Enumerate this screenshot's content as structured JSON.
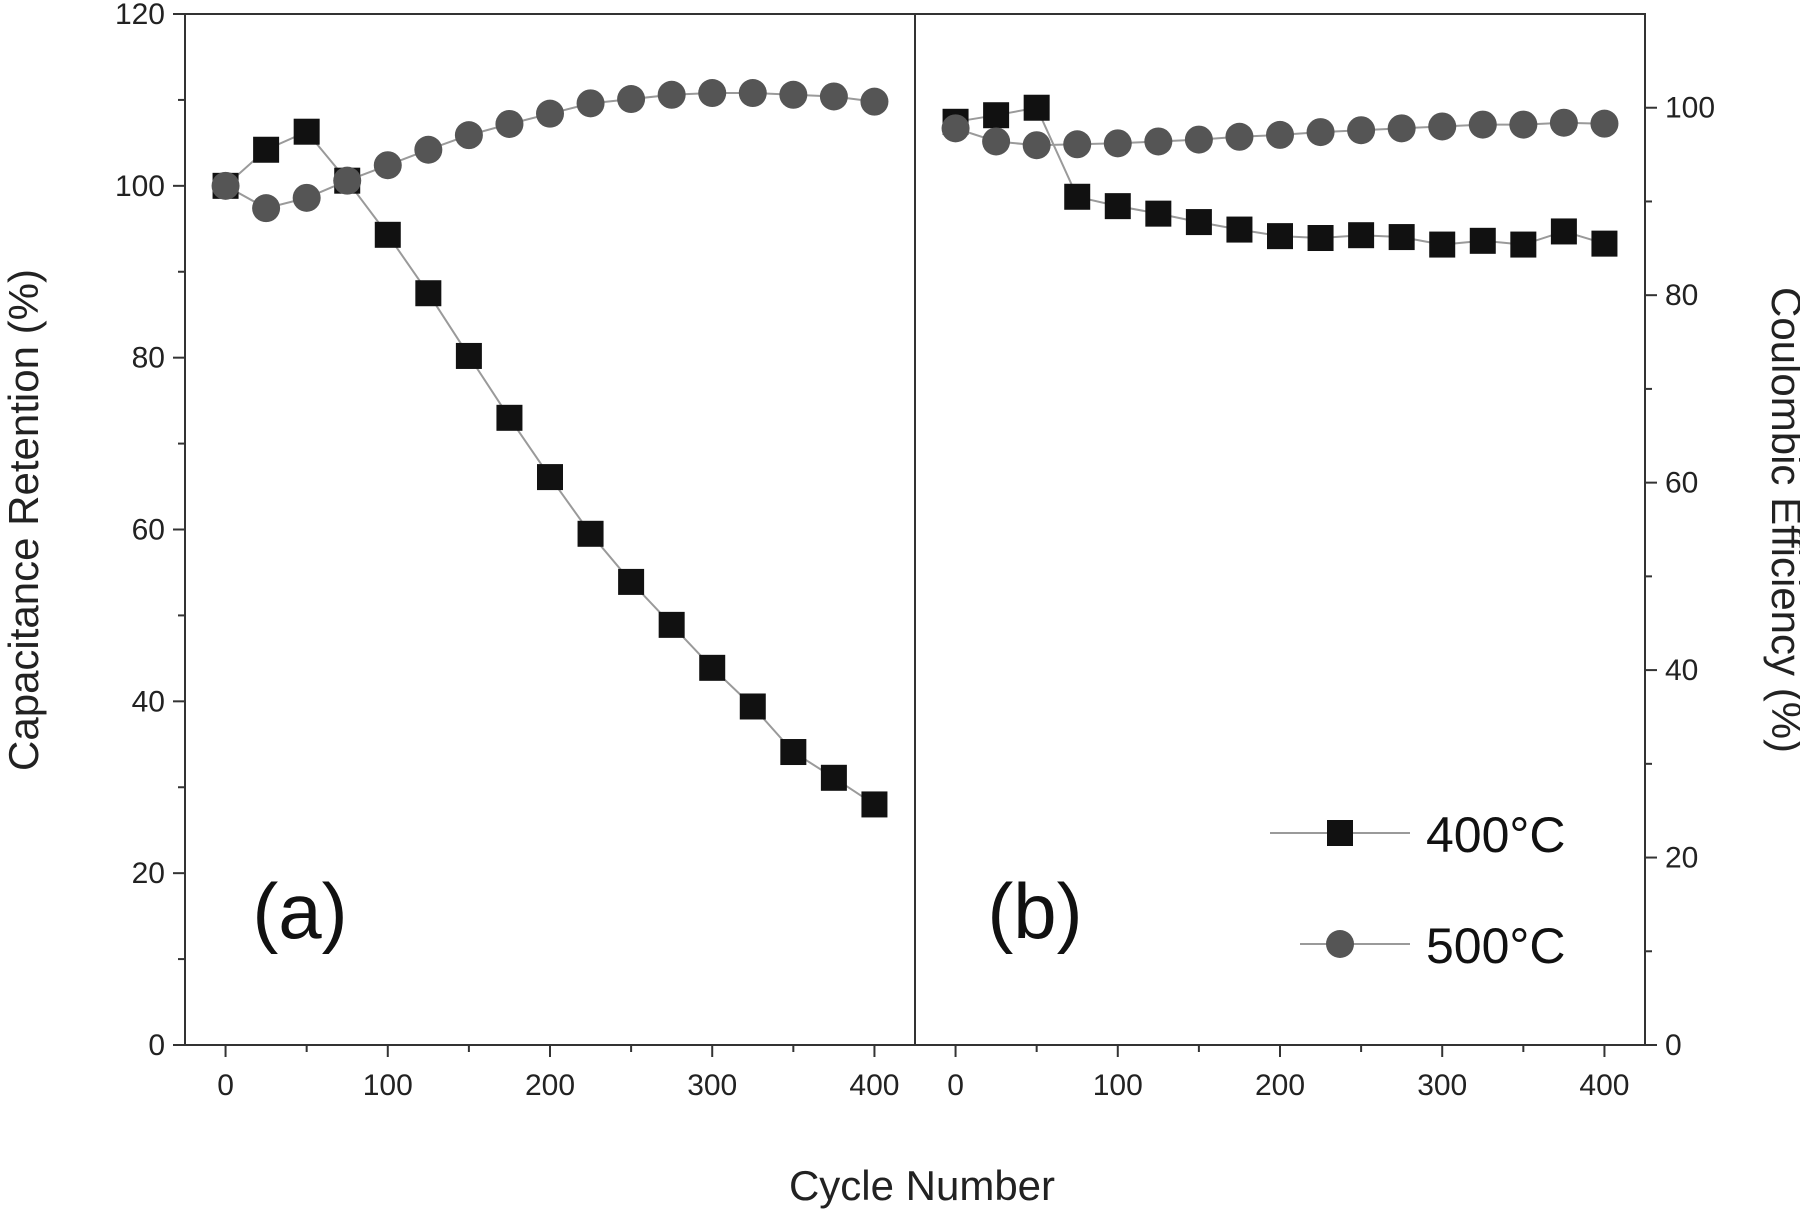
{
  "chart_data": {
    "type": "scatter",
    "xlabel": "Cycle Number",
    "ylabel_left": "Capacitance Retention (%)",
    "ylabel_right": "Coulombic Efficiency (%)",
    "legend_position": "bottom-right",
    "grid": false,
    "colors": {
      "400C": "#111111",
      "500C": "#555555",
      "line": "#9a9a9a"
    },
    "x_ticks": [
      "0",
      "100",
      "200",
      "300",
      "400"
    ],
    "panels": [
      {
        "label": "(a)",
        "xlim": [
          -25,
          425
        ],
        "ylim": [
          0,
          120
        ],
        "y_ticks": [
          "0",
          "20",
          "40",
          "60",
          "80",
          "100",
          "120"
        ],
        "series": [
          {
            "name": "400°C",
            "marker": "square",
            "x": [
              0,
              25,
              50,
              75,
              100,
              125,
              150,
              175,
              200,
              225,
              250,
              275,
              300,
              325,
              350,
              375,
              400
            ],
            "y": [
              100,
              104.2,
              106.3,
              100.6,
              94.3,
              87.5,
              80.2,
              73.0,
              66.1,
              59.5,
              53.9,
              48.9,
              43.9,
              39.4,
              34.1,
              31.1,
              28.0
            ]
          },
          {
            "name": "500°C",
            "marker": "circle",
            "x": [
              0,
              25,
              50,
              75,
              100,
              125,
              150,
              175,
              200,
              225,
              250,
              275,
              300,
              325,
              350,
              375,
              400
            ],
            "y": [
              100,
              97.4,
              98.6,
              100.6,
              102.4,
              104.2,
              105.9,
              107.2,
              108.4,
              109.6,
              110.1,
              110.6,
              110.8,
              110.8,
              110.6,
              110.4,
              109.8
            ]
          }
        ]
      },
      {
        "label": "(b)",
        "xlim": [
          -25,
          425
        ],
        "ylim": [
          0,
          110
        ],
        "y_ticks": [
          "0",
          "20",
          "40",
          "60",
          "80",
          "100"
        ],
        "series": [
          {
            "name": "400°C",
            "marker": "square",
            "x": [
              0,
              25,
              50,
              75,
              100,
              125,
              150,
              175,
              200,
              225,
              250,
              275,
              300,
              325,
              350,
              375,
              400
            ],
            "y": [
              98.5,
              99.2,
              100.0,
              90.5,
              89.5,
              88.7,
              87.8,
              87.0,
              86.3,
              86.1,
              86.4,
              86.2,
              85.4,
              85.8,
              85.4,
              86.8,
              85.5
            ]
          },
          {
            "name": "500°C",
            "marker": "circle",
            "x": [
              0,
              25,
              50,
              75,
              100,
              125,
              150,
              175,
              200,
              225,
              250,
              275,
              300,
              325,
              350,
              375,
              400
            ],
            "y": [
              97.8,
              96.4,
              96.0,
              96.1,
              96.2,
              96.4,
              96.6,
              96.9,
              97.1,
              97.4,
              97.6,
              97.8,
              98.0,
              98.2,
              98.2,
              98.4,
              98.3
            ]
          }
        ]
      }
    ],
    "legend": [
      {
        "label": "400°C",
        "marker": "square"
      },
      {
        "label": "500°C",
        "marker": "circle"
      }
    ]
  }
}
